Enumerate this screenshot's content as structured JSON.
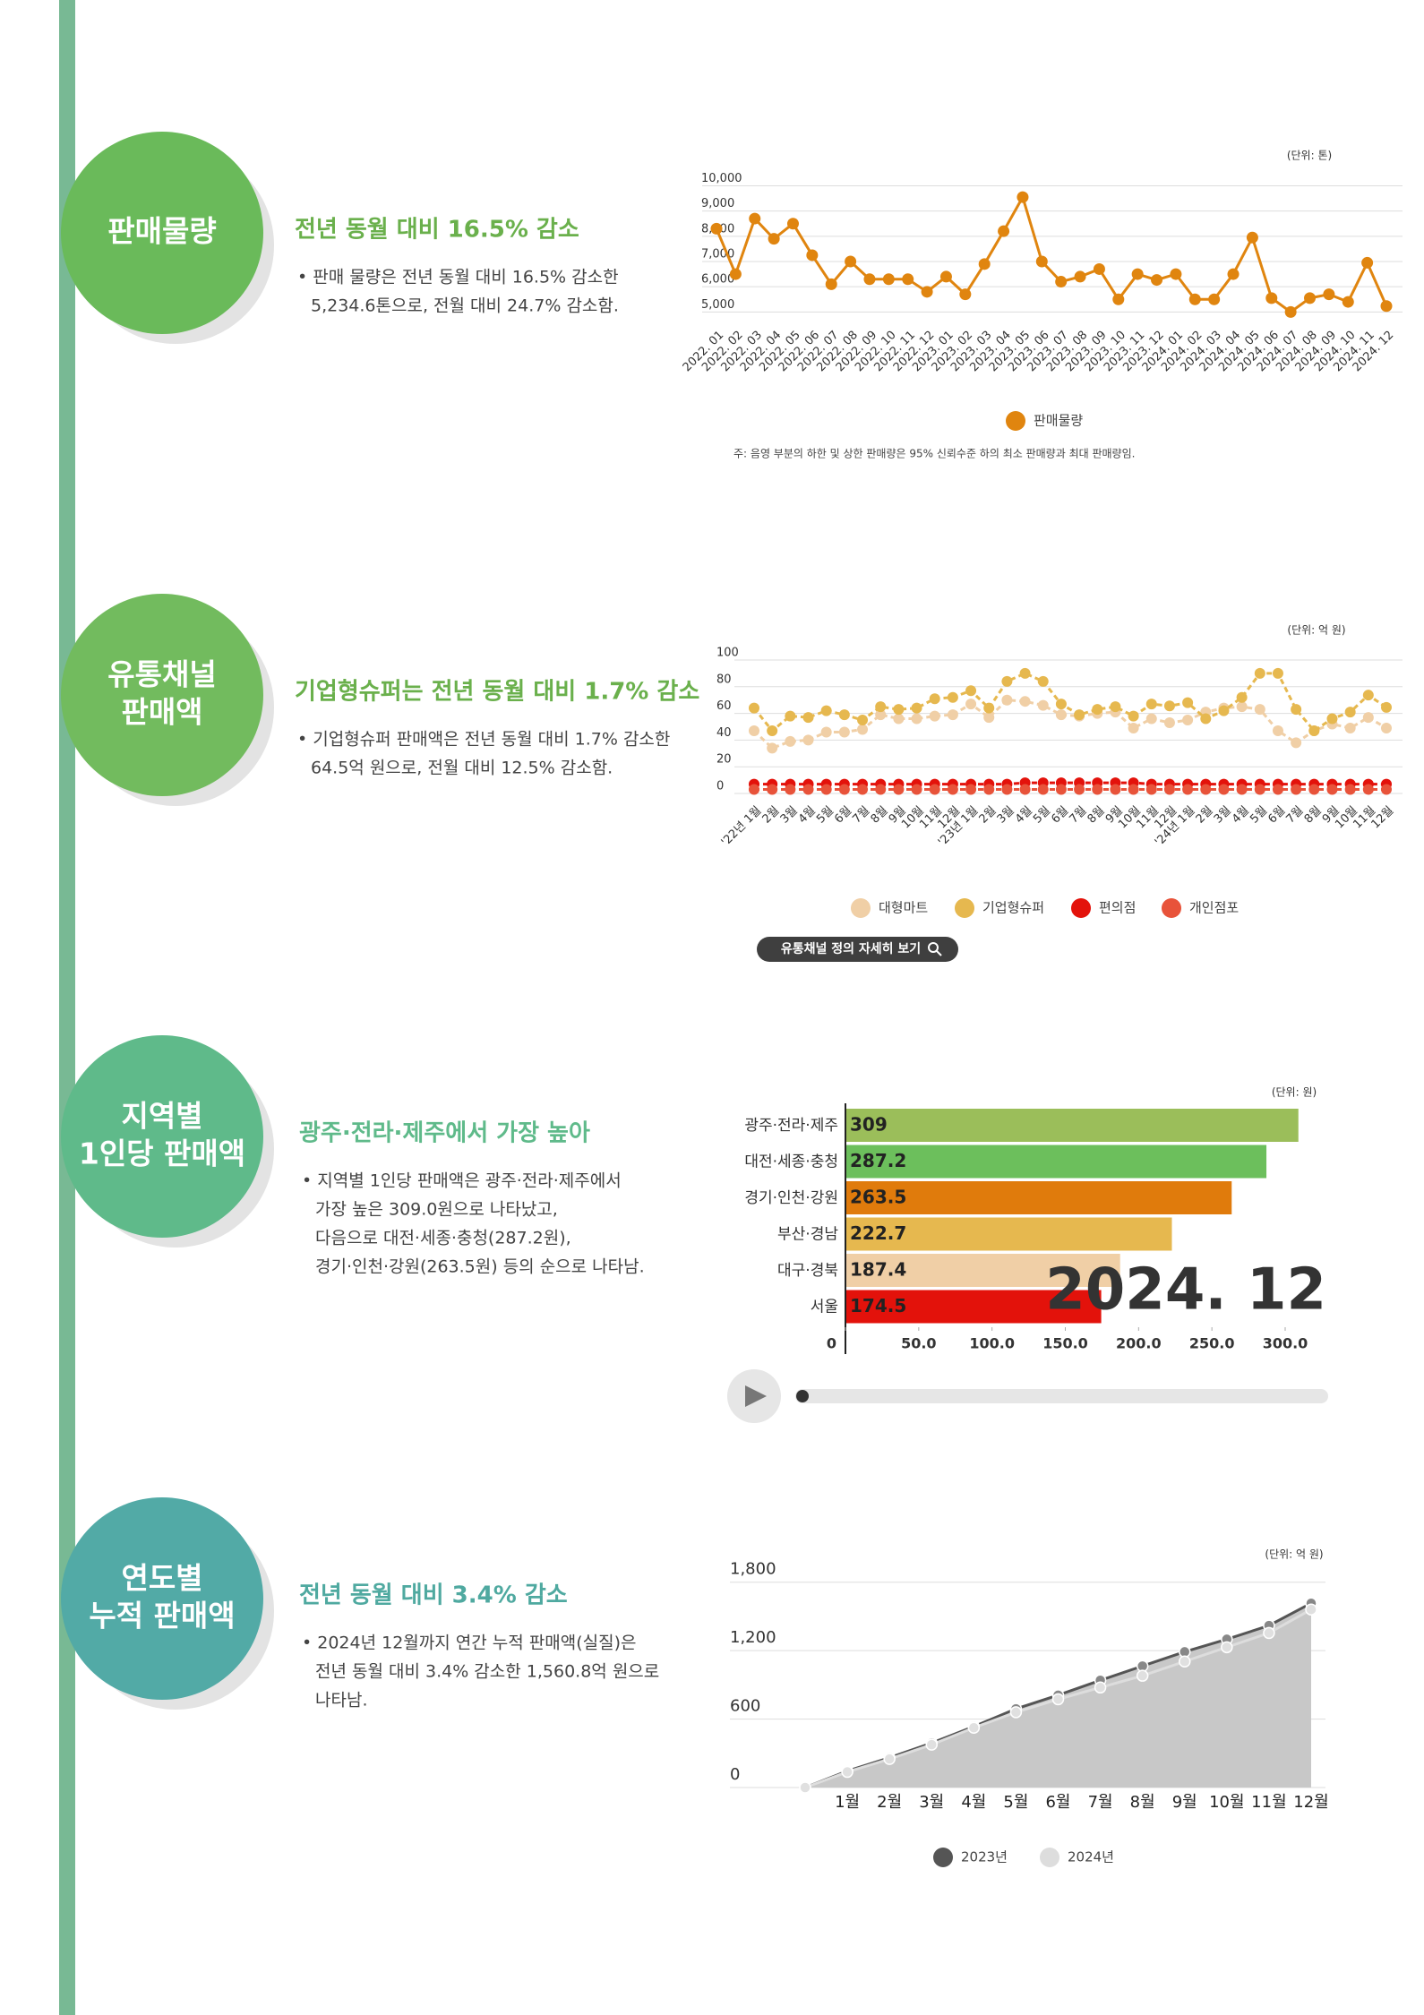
{
  "sections": [
    {
      "badge": [
        "판매물량"
      ],
      "headline": "전년 동월 대비 16.5% 감소",
      "body": [
        "• 판매 물량은 전년 동월 대비 16.5% 감소한",
        "5,234.6톤으로, 전월 대비 24.7% 감소함."
      ]
    },
    {
      "badge": [
        "유통채널",
        "판매액"
      ],
      "headline": "기업형슈퍼는 전년 동월 대비 1.7% 감소",
      "body": [
        "• 기업형슈퍼 판매액은 전년 동월 대비 1.7% 감소한",
        "64.5억 원으로, 전월 대비 12.5% 감소함."
      ],
      "button": "유통채널 정의 자세히 보기"
    },
    {
      "badge": [
        "지역별",
        "1인당 판매액"
      ],
      "headline": "광주·전라·제주에서 가장 높아",
      "body": [
        "• 지역별 1인당 판매액은 광주·전라·제주에서",
        "가장 높은 309.0원으로 나타났고,",
        "다음으로 대전·세종·충청(287.2원),",
        "경기·인천·강원(263.5원) 등의 순으로 나타남."
      ]
    },
    {
      "badge": [
        "연도별",
        "누적 판매액"
      ],
      "headline": "전년 동월 대비 3.4% 감소",
      "body": [
        "• 2024년 12월까지 연간 누적 판매액(실질)은",
        "전년 동월 대비 3.4% 감소한 1,560.8억 원으로",
        "나타남."
      ]
    }
  ],
  "chart_data": [
    {
      "type": "line",
      "unit_label": "(단위: 톤)",
      "note": "주: 음영 부분의 하한 및 상한 판매량은 95% 신뢰수준 하의 최소 판매량과 최대 판매량임.",
      "categories": [
        "2022. 01",
        "2022. 02",
        "2022. 03",
        "2022. 04",
        "2022. 05",
        "2022. 06",
        "2022. 07",
        "2022. 08",
        "2022. 09",
        "2022. 10",
        "2022. 11",
        "2022. 12",
        "2023. 01",
        "2023. 02",
        "2023. 03",
        "2023. 04",
        "2023. 05",
        "2023. 06",
        "2023. 07",
        "2023. 08",
        "2023. 09",
        "2023. 10",
        "2023. 11",
        "2023. 12",
        "2024. 01",
        "2024. 02",
        "2024. 03",
        "2024. 04",
        "2024. 05",
        "2024. 06",
        "2024. 07",
        "2024. 08",
        "2024. 09",
        "2024. 10",
        "2024. 11",
        "2024. 12"
      ],
      "series": [
        {
          "name": "판매물량",
          "color": "#e0850f",
          "values": [
            8300,
            6500,
            8700,
            7900,
            8500,
            7250,
            6100,
            7000,
            6300,
            6300,
            6300,
            5800,
            6400,
            5700,
            6900,
            8200,
            9550,
            7000,
            6200,
            6400,
            6700,
            5500,
            6500,
            6270,
            6500,
            5500,
            5500,
            6500,
            7950,
            5550,
            5000,
            5550,
            5700,
            5400,
            6950,
            5235
          ]
        }
      ],
      "ylim": [
        4800,
        10300
      ],
      "yticks": [
        {
          "value": 5000,
          "label": "5,000"
        },
        {
          "value": 6000,
          "label": "6,000"
        },
        {
          "value": 7000,
          "label": "7,000"
        },
        {
          "value": 8000,
          "label": "8,000"
        },
        {
          "value": 9000,
          "label": "9,000"
        },
        {
          "value": 10000,
          "label": "10,000"
        }
      ],
      "grid": true
    },
    {
      "type": "line",
      "unit_label": "(단위: 억 원)",
      "dashed": true,
      "categories": [
        "'22년 1월",
        "2월",
        "3월",
        "4월",
        "5월",
        "6월",
        "7월",
        "8월",
        "9월",
        "10월",
        "11월",
        "12월",
        "'23년 1월",
        "2월",
        "3월",
        "4월",
        "5월",
        "6월",
        "7월",
        "8월",
        "9월",
        "10월",
        "11월",
        "12월",
        "'24년 1월",
        "2월",
        "3월",
        "4월",
        "5월",
        "6월",
        "7월",
        "8월",
        "9월",
        "10월",
        "11월",
        "12월"
      ],
      "series": [
        {
          "name": "대형마트",
          "color": "#f0cfa6",
          "values": [
            47,
            34,
            39,
            40,
            46,
            46,
            48,
            59,
            56,
            56,
            58,
            59,
            67,
            57,
            70,
            69,
            66,
            59,
            58,
            60,
            61,
            49,
            56,
            53,
            55,
            61,
            64,
            65,
            63,
            47,
            38,
            47,
            52,
            49,
            57,
            49
          ]
        },
        {
          "name": "기업형슈퍼",
          "color": "#e6b84f",
          "values": [
            64,
            47,
            58,
            57,
            62,
            59,
            55,
            65,
            63,
            64,
            71,
            72,
            77,
            64,
            84,
            90,
            84,
            67,
            59,
            63,
            65,
            58,
            67,
            65.6,
            68,
            56,
            62,
            72,
            90,
            90,
            63,
            47,
            56,
            61,
            73.7,
            64.5
          ]
        },
        {
          "name": "편의점",
          "color": "#e3120b",
          "values": [
            7,
            7,
            7,
            7,
            7,
            7,
            7,
            7,
            7,
            7,
            7,
            7,
            7,
            7,
            7,
            8,
            8,
            8,
            8,
            8,
            8,
            8,
            7,
            7,
            7,
            7,
            7,
            7,
            7,
            7,
            7,
            7,
            7,
            7,
            7,
            7
          ]
        },
        {
          "name": "개인점포",
          "color": "#e8533a",
          "values": [
            3,
            3,
            3,
            3,
            3,
            3,
            3,
            3,
            3,
            3,
            3,
            3,
            3,
            3,
            3,
            3,
            3,
            3,
            3,
            3,
            3,
            3,
            3,
            3,
            3,
            3,
            3,
            3,
            3,
            3,
            3,
            3,
            3,
            3,
            3,
            3
          ]
        }
      ],
      "ylim": [
        0,
        100
      ],
      "yticks": [
        0,
        20,
        40,
        60,
        80,
        100
      ],
      "grid": true
    },
    {
      "type": "barh",
      "unit_label": "(단위: 원)",
      "big_label": "2024. 12",
      "categories": [
        "광주·전라·제주",
        "대전·세종·충청",
        "경기·인천·강원",
        "부산·경남",
        "대구·경북",
        "서울"
      ],
      "values": [
        309,
        287.2,
        263.5,
        222.7,
        187.4,
        174.5
      ],
      "colors": [
        "#9bbe5a",
        "#6cbf5c",
        "#e07b0c",
        "#e6b84f",
        "#f0cfa6",
        "#e3120b"
      ],
      "xlim": [
        0,
        300
      ],
      "xticks": [
        0,
        {
          "value": 50,
          "label": "50.0"
        },
        {
          "value": 100,
          "label": "100.0"
        },
        {
          "value": 150,
          "label": "150.0"
        },
        {
          "value": 200,
          "label": "200.0"
        },
        {
          "value": 250,
          "label": "250.0"
        },
        {
          "value": 300,
          "label": "300.0"
        }
      ]
    },
    {
      "type": "area",
      "unit_label": "(단위: 억 원)",
      "categories": [
        null,
        "1월",
        "2월",
        "3월",
        "4월",
        "5월",
        "6월",
        "7월",
        "8월",
        "9월",
        "10월",
        "11월",
        "12월"
      ],
      "series": [
        {
          "name": "2023년",
          "color": "#555555",
          "values": [
            0,
            145,
            262,
            390,
            535,
            690,
            810,
            940,
            1065,
            1190,
            1300,
            1420,
            1615.7
          ]
        },
        {
          "name": "2024년",
          "color": "#dddddd",
          "values": [
            0,
            137,
            250,
            376,
            524,
            660,
            774,
            877,
            980,
            1105,
            1230,
            1355,
            1560.8
          ]
        }
      ],
      "ylim": [
        0,
        1900
      ],
      "yticks": [
        0,
        600,
        {
          "value": 1200,
          "label": "1,200"
        },
        {
          "value": 1800,
          "label": "1,800"
        }
      ],
      "grid": true
    }
  ]
}
